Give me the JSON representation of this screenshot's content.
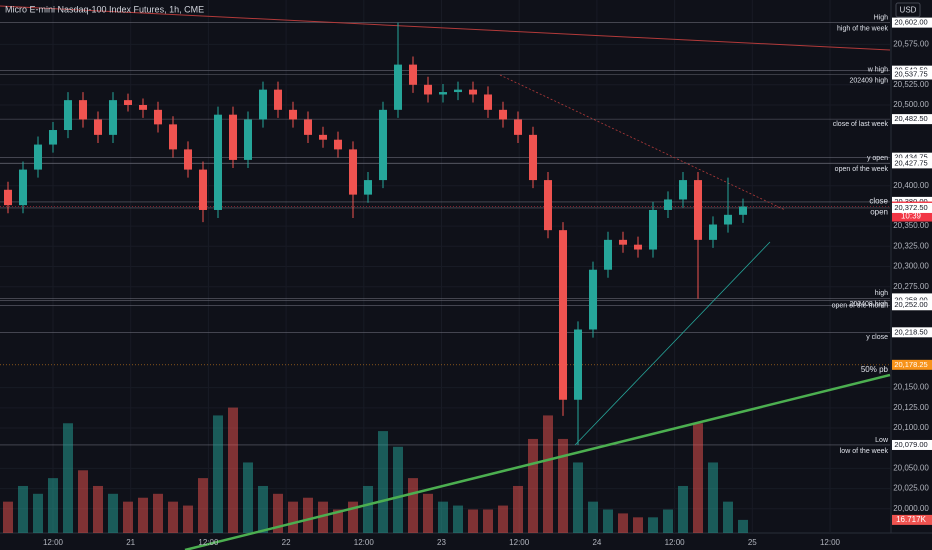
{
  "chart_data": {
    "type": "candlestick",
    "title": "Micro E-mini Nasdaq-100 Index Futures, 1h, CME",
    "currency": "USD",
    "up_color": "#26a69a",
    "down_color": "#ef5350",
    "ylim": [
      19970,
      20630
    ],
    "yticks": [
      {
        "value": 20575,
        "label": "20,575.00"
      },
      {
        "value": 20525,
        "label": "20,525.00"
      },
      {
        "value": 20500,
        "label": "20,500.00"
      },
      {
        "value": 20400,
        "label": "20,400.00"
      },
      {
        "value": 20350,
        "label": "20,350.00"
      },
      {
        "value": 20325,
        "label": "20,325.00"
      },
      {
        "value": 20300,
        "label": "20,300.00"
      },
      {
        "value": 20275,
        "label": "20,275.00"
      },
      {
        "value": 20150,
        "label": "20,150.00"
      },
      {
        "value": 20125,
        "label": "20,125.00"
      },
      {
        "value": 20100,
        "label": "20,100.00"
      },
      {
        "value": 20050,
        "label": "20,050.00"
      },
      {
        "value": 20025,
        "label": "20,025.00"
      },
      {
        "value": 20000,
        "label": "20,000.00"
      }
    ],
    "x_labels": [
      "12:00",
      "21",
      "12:00",
      "22",
      "12:00",
      "23",
      "12:00",
      "24",
      "12:00",
      "25",
      "12:00"
    ],
    "open": [
      20395,
      20376,
      20420,
      20451,
      20469,
      20506,
      20482,
      20463,
      20506,
      20500,
      20494,
      20476,
      20445,
      20420,
      20370,
      20488,
      20432,
      20482,
      20519,
      20494,
      20482,
      20463,
      20457,
      20445,
      20389,
      20407,
      20494,
      20550,
      20525,
      20513,
      20516,
      20519,
      20513,
      20494,
      20482,
      20463,
      20407,
      20345,
      20135,
      20222,
      20296,
      20333,
      20327,
      20321,
      20370,
      20383,
      20407,
      20333,
      20352,
      20364
    ],
    "high": [
      20405,
      20430,
      20461,
      20479,
      20516,
      20516,
      20492,
      20516,
      20514,
      20508,
      20504,
      20486,
      20455,
      20430,
      20498,
      20498,
      20492,
      20529,
      20529,
      20504,
      20492,
      20473,
      20467,
      20455,
      20417,
      20504,
      20602,
      20560,
      20535,
      20526,
      20529,
      20529,
      20523,
      20504,
      20492,
      20473,
      20417,
      20355,
      20232,
      20306,
      20343,
      20343,
      20337,
      20380,
      20393,
      20417,
      20417,
      20362,
      20410,
      20384
    ],
    "low": [
      20366,
      20366,
      20410,
      20441,
      20459,
      20472,
      20453,
      20453,
      20492,
      20484,
      20466,
      20435,
      20410,
      20355,
      20360,
      20422,
      20422,
      20472,
      20484,
      20472,
      20453,
      20447,
      20435,
      20360,
      20379,
      20397,
      20484,
      20515,
      20503,
      20503,
      20506,
      20503,
      20484,
      20472,
      20453,
      20397,
      20335,
      20115,
      20079,
      20212,
      20286,
      20317,
      20311,
      20311,
      20360,
      20373,
      20260,
      20323,
      20342,
      20354
    ],
    "close": [
      20376,
      20420,
      20451,
      20469,
      20506,
      20482,
      20463,
      20506,
      20500,
      20494,
      20476,
      20445,
      20420,
      20370,
      20488,
      20432,
      20482,
      20519,
      20494,
      20482,
      20463,
      20457,
      20445,
      20389,
      20407,
      20494,
      20550,
      20525,
      20513,
      20516,
      20519,
      20513,
      20494,
      20482,
      20463,
      20407,
      20345,
      20135,
      20222,
      20296,
      20333,
      20327,
      20321,
      20370,
      20383,
      20407,
      20333,
      20352,
      20364,
      20374.25
    ],
    "volume": {
      "y2lim": [
        0,
        680
      ],
      "values": [
        40,
        60,
        50,
        70,
        140,
        80,
        60,
        50,
        40,
        45,
        50,
        40,
        35,
        70,
        150,
        160,
        90,
        60,
        50,
        40,
        45,
        40,
        30,
        40,
        60,
        130,
        110,
        70,
        50,
        40,
        35,
        30,
        30,
        35,
        60,
        120,
        150,
        120,
        90,
        40,
        30,
        25,
        20,
        20,
        30,
        60,
        140,
        90,
        40,
        16.717
      ],
      "last_label": "16.717K"
    },
    "levels": [
      {
        "value": 20602,
        "label": "20,602.00",
        "tags": [
          "High",
          "high of the week"
        ]
      },
      {
        "value": 20542.5,
        "label": "20,542.50",
        "tags": []
      },
      {
        "value": 20537.75,
        "label": "20,537.75",
        "tags": [
          "w high",
          "202409 high"
        ]
      },
      {
        "value": 20482.5,
        "label": "20,482.50",
        "tags": [
          "close of last week"
        ]
      },
      {
        "value": 20434.75,
        "label": "20,434.75",
        "tags": []
      },
      {
        "value": 20428,
        "label": "20,428.00",
        "tags": []
      },
      {
        "value": 20427.75,
        "label": "20,427.75",
        "tags": [
          "y open",
          "open of the week"
        ]
      },
      {
        "value": 20380,
        "label": "20,380.00",
        "tags": []
      },
      {
        "value": 20374.25,
        "label": "20,374.25",
        "tags": [
          "close",
          "open"
        ],
        "color": "#f23645",
        "countdown": "10:39"
      },
      {
        "value": 20372.5,
        "label": "20,372.50",
        "tags": []
      },
      {
        "value": 20260.5,
        "label": "20,260.50",
        "tags": [
          "high",
          "202408 high"
        ]
      },
      {
        "value": 20258,
        "label": "20,258.00",
        "tags": [
          "open of the month"
        ]
      },
      {
        "value": 20252,
        "label": "20,252.00",
        "tags": []
      },
      {
        "value": 20218.5,
        "label": "20,218.50",
        "tags": [
          "y close"
        ]
      },
      {
        "value": 20178.25,
        "label": "20,178.25",
        "tags": [
          "50% pb"
        ],
        "color": "#f7931a"
      },
      {
        "value": 20079,
        "label": "20,079.00",
        "tags": [
          "Low",
          "low of the week"
        ]
      }
    ]
  }
}
